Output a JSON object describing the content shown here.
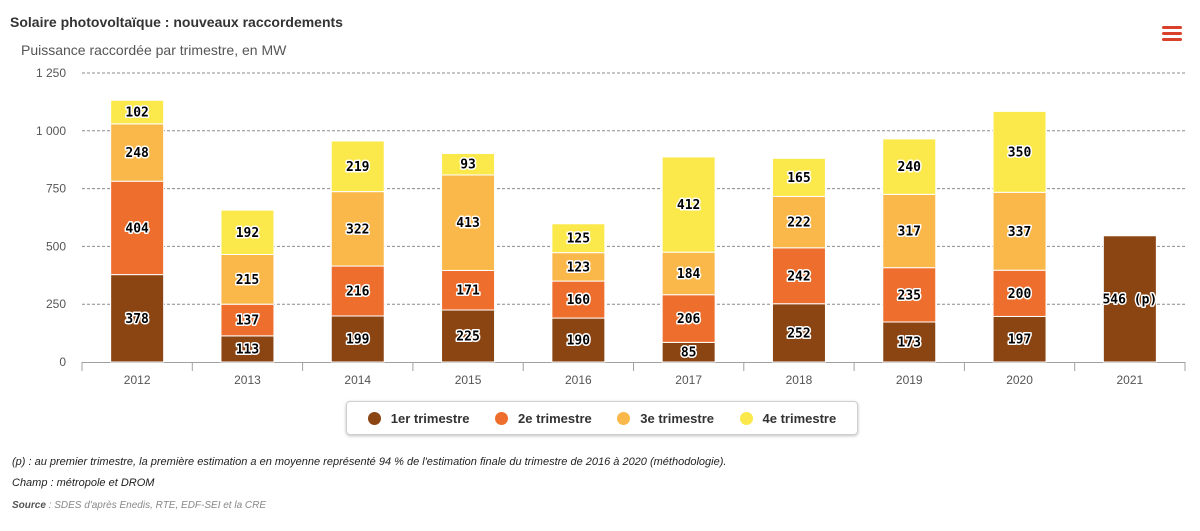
{
  "header": {
    "title": "Solaire photovoltaïque : nouveaux raccordements",
    "subtitle": "Puissance raccordée par trimestre, en MW",
    "menu_icon": "hamburger-menu-icon"
  },
  "colors": {
    "q1": "#8b4513",
    "q2": "#ee6f2d",
    "q3": "#fbb84a",
    "q4": "#fbe94c",
    "grid": "#8c8c8c",
    "menu": "#d9412c"
  },
  "chart_data": {
    "type": "bar",
    "stacked": true,
    "title": "Solaire photovoltaïque : nouveaux raccordements",
    "subtitle": "Puissance raccordée par trimestre, en MW",
    "xlabel": "",
    "ylabel": "",
    "categories": [
      "2012",
      "2013",
      "2014",
      "2015",
      "2016",
      "2017",
      "2018",
      "2019",
      "2020",
      "2021"
    ],
    "ylim": [
      0,
      1250
    ],
    "yticks": [
      0,
      250,
      500,
      750,
      1000,
      1250
    ],
    "ytick_labels": [
      "0",
      "250",
      "500",
      "750",
      "1 000",
      "1 250"
    ],
    "grid": true,
    "legend_position": "bottom-center",
    "series": [
      {
        "name": "1er trimestre",
        "values": [
          378,
          113,
          199,
          225,
          190,
          85,
          252,
          173,
          197,
          546
        ]
      },
      {
        "name": "2e trimestre",
        "values": [
          404,
          137,
          216,
          171,
          160,
          206,
          242,
          235,
          200,
          null
        ]
      },
      {
        "name": "3e trimestre",
        "values": [
          248,
          215,
          322,
          413,
          123,
          184,
          222,
          317,
          337,
          null
        ]
      },
      {
        "name": "4e trimestre",
        "values": [
          102,
          192,
          219,
          93,
          125,
          412,
          165,
          240,
          350,
          null
        ]
      }
    ],
    "data_labels": {
      "1er trimestre": [
        "378",
        "113",
        "199",
        "225",
        "190",
        "85",
        "252",
        "173",
        "197",
        "546 (p)"
      ]
    }
  },
  "legend": {
    "items": [
      "1er trimestre",
      "2e trimestre",
      "3e trimestre",
      "4e trimestre"
    ]
  },
  "notes": {
    "line1": "(p) : au premier trimestre, la première estimation a en moyenne représenté 94 % de l'estimation finale du trimestre de 2016 à 2020 (méthodologie).",
    "line2": "Champ : métropole et DROM",
    "source_label": "Source",
    "source_text": " : SDES d'après Enedis, RTE, EDF-SEI et la CRE"
  }
}
